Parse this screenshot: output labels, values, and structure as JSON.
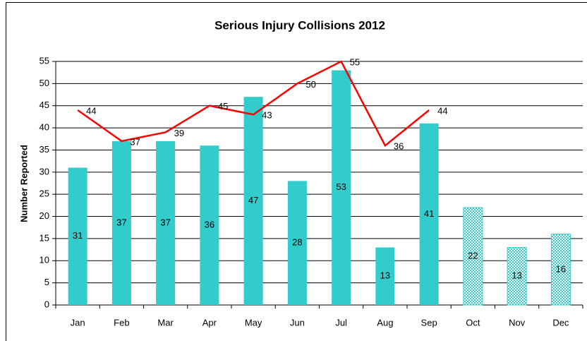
{
  "chart_data": {
    "type": "bar",
    "title": "Serious Injury Collisions 2012",
    "y_label": "Number Reported",
    "categories": [
      "Jan",
      "Feb",
      "Mar",
      "Apr",
      "May",
      "Jun",
      "Jul",
      "Aug",
      "Sep",
      "Oct",
      "Nov",
      "Dec"
    ],
    "series": [
      {
        "type": "bar",
        "color": "#33cccc",
        "values": [
          31,
          37,
          37,
          36,
          47,
          28,
          53,
          13,
          41,
          22,
          13,
          16
        ],
        "patterned": [
          false,
          false,
          false,
          false,
          false,
          false,
          false,
          false,
          false,
          true,
          true,
          true
        ]
      },
      {
        "type": "line",
        "color": "#ff0000",
        "values": [
          44,
          37,
          39,
          45,
          43,
          50,
          55,
          36,
          44,
          null,
          null,
          null
        ]
      }
    ],
    "ylim": [
      0,
      55
    ],
    "yticks": [
      0,
      5,
      10,
      15,
      20,
      25,
      30,
      35,
      40,
      45,
      50,
      55
    ],
    "grid": true
  }
}
